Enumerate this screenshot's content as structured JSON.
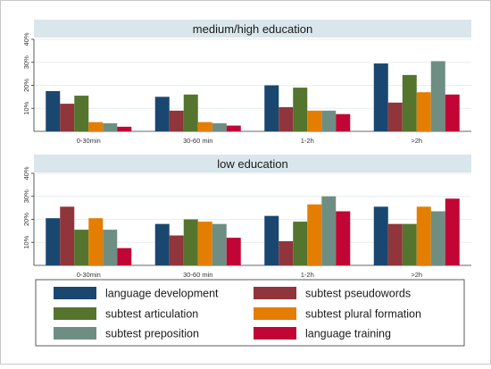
{
  "chart_data": [
    {
      "type": "bar",
      "title": "medium/high education",
      "categories": [
        "0-30min",
        "30-60 min",
        "1-2h",
        ">2h"
      ],
      "ylim": [
        0,
        40
      ],
      "yticks": [
        10,
        20,
        30,
        40
      ],
      "ytick_labels": [
        "10%",
        "20%",
        "30%",
        "40%"
      ],
      "series": [
        {
          "name": "language development",
          "values": [
            17.5,
            15,
            20,
            29.5
          ]
        },
        {
          "name": "subtest pseudowords",
          "values": [
            12,
            9,
            10.5,
            12.5
          ]
        },
        {
          "name": "subtest articulation",
          "values": [
            15.5,
            16,
            19,
            24.5
          ]
        },
        {
          "name": "subtest plural formation",
          "values": [
            4,
            4,
            9,
            17
          ]
        },
        {
          "name": "subtest preposition",
          "values": [
            3.5,
            3.5,
            9,
            30.5
          ]
        },
        {
          "name": "language training",
          "values": [
            2,
            2.5,
            7.5,
            16
          ]
        }
      ]
    },
    {
      "type": "bar",
      "title": "low education",
      "categories": [
        "0-30min",
        "30-60 min",
        "1-2h",
        ">2h"
      ],
      "ylim": [
        0,
        40
      ],
      "yticks": [
        10,
        20,
        30,
        40
      ],
      "ytick_labels": [
        "10%",
        "20%",
        "30%",
        "40%"
      ],
      "series": [
        {
          "name": "language development",
          "values": [
            20.5,
            18,
            21.5,
            25.5
          ]
        },
        {
          "name": "subtest pseudowords",
          "values": [
            25.5,
            13,
            10.5,
            18
          ]
        },
        {
          "name": "subtest articulation",
          "values": [
            15.5,
            20,
            19,
            18
          ]
        },
        {
          "name": "subtest plural formation",
          "values": [
            20.5,
            19,
            26.5,
            25.5
          ]
        },
        {
          "name": "subtest preposition",
          "values": [
            15.5,
            18,
            30,
            23.5
          ]
        },
        {
          "name": "language training",
          "values": [
            7.5,
            12,
            23.5,
            29
          ]
        }
      ]
    }
  ],
  "legend": {
    "placement": "bottom",
    "entries": [
      {
        "label": "language development",
        "color": "#1a476f"
      },
      {
        "label": "subtest pseudowords",
        "color": "#90353b"
      },
      {
        "label": "subtest articulation",
        "color": "#55752f"
      },
      {
        "label": "subtest plural formation",
        "color": "#e37e00"
      },
      {
        "label": "subtest preposition",
        "color": "#6e8e84"
      },
      {
        "label": "language training",
        "color": "#c10534"
      }
    ]
  },
  "colors": {
    "series": [
      "#1a476f",
      "#90353b",
      "#55752f",
      "#e37e00",
      "#6e8e84",
      "#c10534"
    ],
    "title_strip": "#d9e6eb",
    "grid": "#e6eef1"
  }
}
